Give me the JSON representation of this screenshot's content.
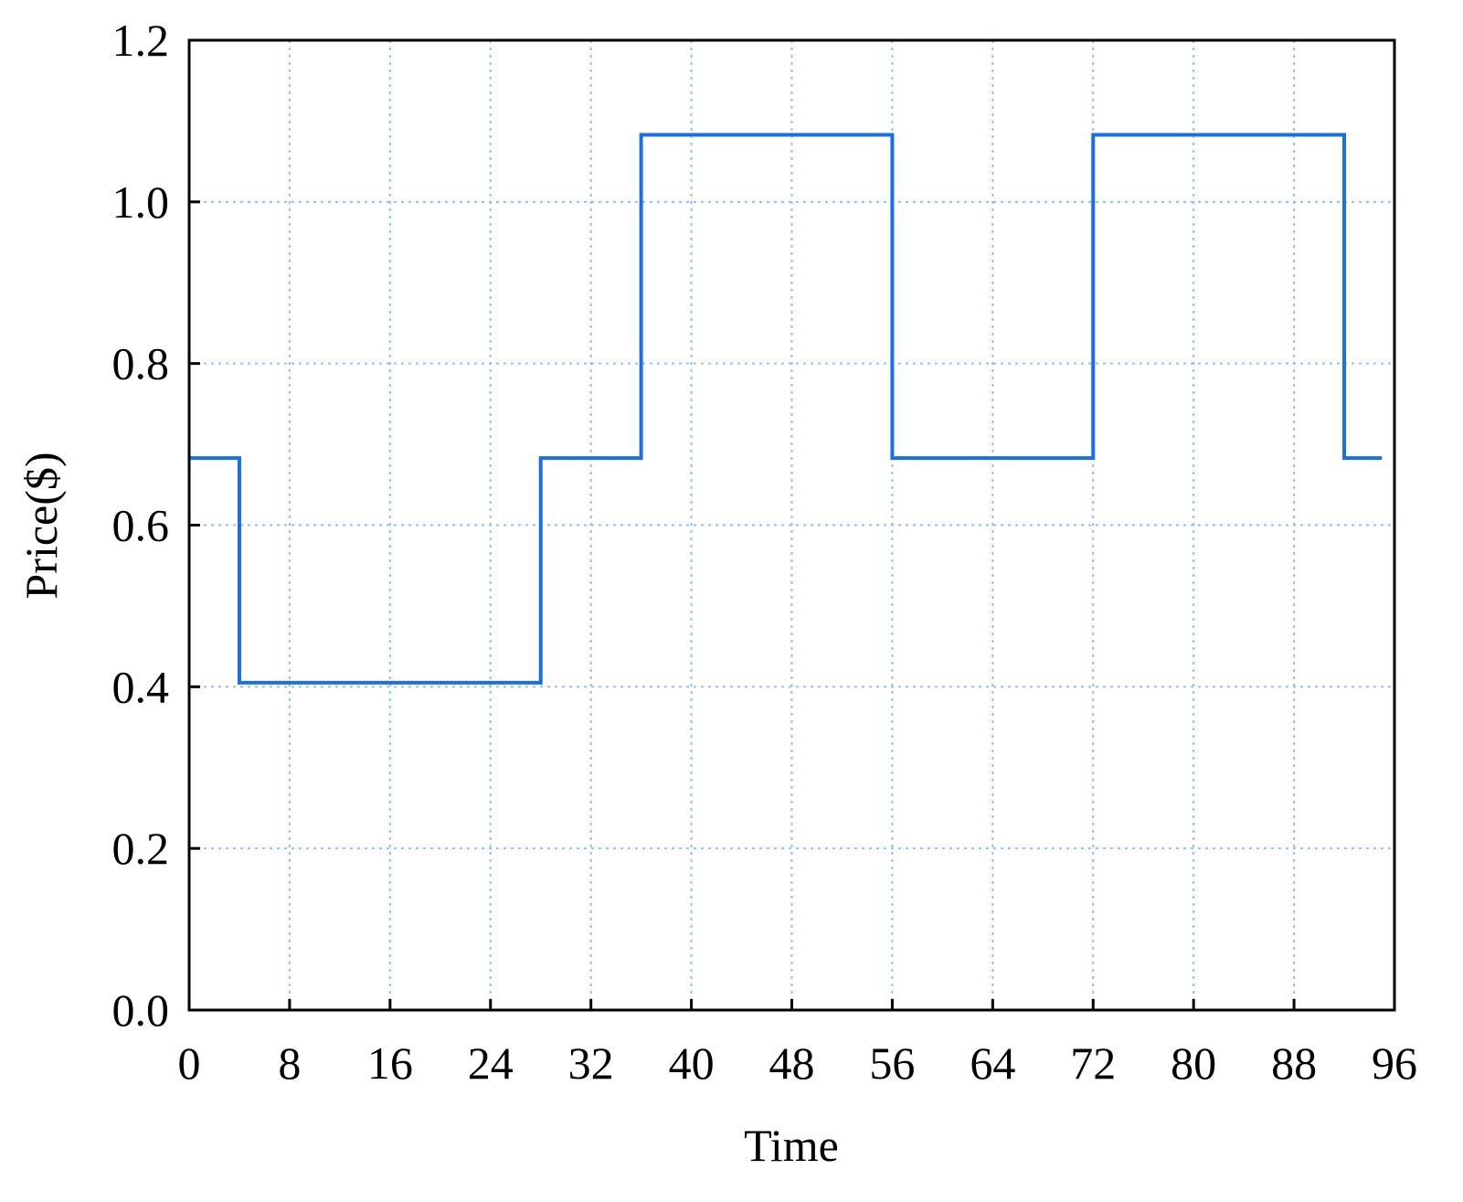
{
  "chart_data": {
    "type": "line",
    "x_label": "Time",
    "y_label": "Price($)",
    "x": [
      0,
      4,
      4,
      28,
      28,
      36,
      36,
      56,
      56,
      72,
      72,
      92,
      92,
      95
    ],
    "series": [
      {
        "color": "#1a6fe6",
        "values": [
          0.683,
          0.683,
          0.405,
          0.405,
          0.683,
          0.683,
          1.083,
          1.083,
          0.683,
          0.683,
          1.083,
          1.083,
          0.683,
          0.683
        ]
      }
    ],
    "xlim": [
      0,
      96
    ],
    "xticks": [
      0,
      8,
      16,
      24,
      32,
      40,
      48,
      56,
      64,
      72,
      80,
      88,
      96
    ],
    "ylim": [
      0,
      1.2
    ],
    "yticks": [
      {
        "value": 0,
        "label": "0.0"
      },
      0.2,
      0.4,
      0.6,
      0.8,
      {
        "value": 1,
        "label": "1.0"
      },
      1.2
    ],
    "grid": true
  }
}
